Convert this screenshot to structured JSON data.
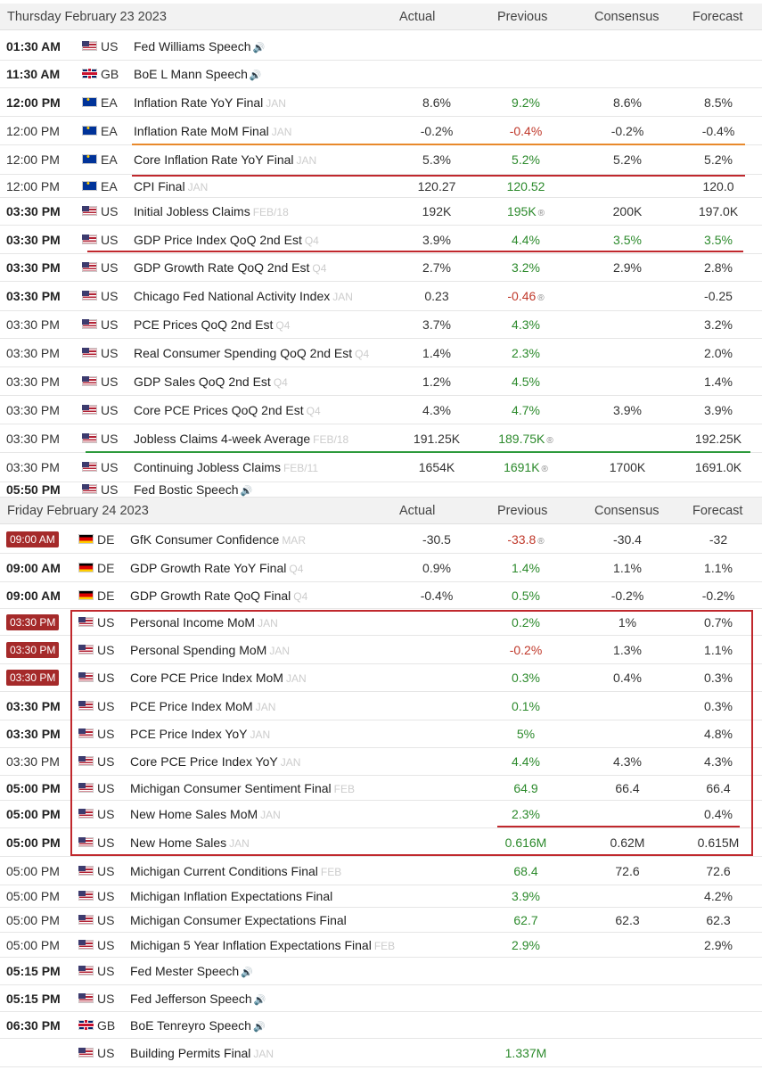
{
  "columns": {
    "actual": "Actual",
    "previous": "Previous",
    "consensus": "Consensus",
    "forecast": "Forecast"
  },
  "sections": [
    {
      "date": "Thursday February 23 2023"
    },
    {
      "date": "Friday February 24 2023"
    }
  ],
  "rows": [
    {
      "time": "01:30 AM",
      "style": "bold",
      "country": "US",
      "event": "Fed Williams Speech",
      "speech": true
    },
    {
      "time": "11:30 AM",
      "style": "bold",
      "country": "GB",
      "event": "BoE L Mann Speech",
      "speech": true
    },
    {
      "time": "12:00 PM",
      "style": "bold",
      "country": "EA",
      "event": "Inflation Rate YoY Final",
      "ref": "JAN",
      "actual": "8.6%",
      "previous": "9.2%",
      "previous_color": "green",
      "consensus": "8.6%",
      "forecast": "8.5%"
    },
    {
      "time": "12:00 PM",
      "style": "normal",
      "country": "EA",
      "event": "Inflation Rate MoM Final",
      "ref": "JAN",
      "actual": "-0.2%",
      "previous": "-0.4%",
      "previous_color": "red",
      "consensus": "-0.2%",
      "forecast": "-0.4%"
    },
    {
      "time": "12:00 PM",
      "style": "normal",
      "country": "EA",
      "event": "Core Inflation Rate YoY Final",
      "ref": "JAN",
      "actual": "5.3%",
      "previous": "5.2%",
      "previous_color": "green",
      "consensus": "5.2%",
      "forecast": "5.2%"
    },
    {
      "time": "12:00 PM",
      "style": "normal",
      "country": "EA",
      "event": "CPI Final",
      "ref": "JAN",
      "actual": "120.27",
      "previous": "120.52",
      "previous_color": "green",
      "consensus": "",
      "forecast": "120.0"
    },
    {
      "time": "03:30 PM",
      "style": "bold",
      "country": "US",
      "event": "Initial Jobless Claims",
      "ref": "FEB/18",
      "actual": "192K",
      "previous": "195K",
      "previous_color": "green",
      "revised": "®",
      "consensus": "200K",
      "forecast": "197.0K"
    },
    {
      "time": "03:30 PM",
      "style": "bold",
      "country": "US",
      "event": "GDP Price Index QoQ 2nd Est",
      "ref": "Q4",
      "actual": "3.9%",
      "previous": "4.4%",
      "previous_color": "green",
      "consensus": "3.5%",
      "consensus_color": "green",
      "forecast": "3.5%",
      "forecast_color": "green"
    },
    {
      "time": "03:30 PM",
      "style": "bold",
      "country": "US",
      "event": "GDP Growth Rate QoQ 2nd Est",
      "ref": "Q4",
      "actual": "2.7%",
      "previous": "3.2%",
      "previous_color": "green",
      "consensus": "2.9%",
      "forecast": "2.8%"
    },
    {
      "time": "03:30 PM",
      "style": "bold",
      "country": "US",
      "event": "Chicago Fed National Activity Index",
      "ref": "JAN",
      "actual": "0.23",
      "previous": "-0.46",
      "previous_color": "red",
      "revised": "®",
      "consensus": "",
      "forecast": "-0.25"
    },
    {
      "time": "03:30 PM",
      "style": "normal",
      "country": "US",
      "event": "PCE Prices QoQ 2nd Est",
      "ref": "Q4",
      "actual": "3.7%",
      "previous": "4.3%",
      "previous_color": "green",
      "consensus": "",
      "forecast": "3.2%"
    },
    {
      "time": "03:30 PM",
      "style": "normal",
      "country": "US",
      "event": "Real Consumer Spending QoQ 2nd Est",
      "ref": "Q4",
      "actual": "1.4%",
      "previous": "2.3%",
      "previous_color": "green",
      "consensus": "",
      "forecast": "2.0%"
    },
    {
      "time": "03:30 PM",
      "style": "normal",
      "country": "US",
      "event": "GDP Sales QoQ 2nd Est",
      "ref": "Q4",
      "actual": "1.2%",
      "previous": "4.5%",
      "previous_color": "green",
      "consensus": "",
      "forecast": "1.4%"
    },
    {
      "time": "03:30 PM",
      "style": "normal",
      "country": "US",
      "event": "Core PCE Prices QoQ 2nd Est",
      "ref": "Q4",
      "actual": "4.3%",
      "previous": "4.7%",
      "previous_color": "green",
      "consensus": "3.9%",
      "forecast": "3.9%"
    },
    {
      "time": "03:30 PM",
      "style": "normal",
      "country": "US",
      "event": "Jobless Claims 4-week Average",
      "ref": "FEB/18",
      "actual": "191.25K",
      "previous": "189.75K",
      "previous_color": "green",
      "revised": "®",
      "consensus": "",
      "forecast": "192.25K"
    },
    {
      "time": "03:30 PM",
      "style": "normal",
      "country": "US",
      "event": "Continuing Jobless Claims",
      "ref": "FEB/11",
      "actual": "1654K",
      "previous": "1691K",
      "previous_color": "green",
      "revised": "®",
      "consensus": "1700K",
      "forecast": "1691.0K"
    },
    {
      "time": "05:50 PM",
      "style": "bold",
      "country": "US",
      "event": "Fed Bostic Speech",
      "speech": true
    },
    {
      "time": "09:00 AM",
      "style": "badge",
      "country": "DE",
      "event": "GfK Consumer Confidence",
      "ref": "MAR",
      "actual": "-30.5",
      "previous": "-33.8",
      "previous_color": "red",
      "revised": "®",
      "consensus": "-30.4",
      "forecast": "-32"
    },
    {
      "time": "09:00 AM",
      "style": "bold",
      "country": "DE",
      "event": "GDP Growth Rate YoY Final",
      "ref": "Q4",
      "actual": "0.9%",
      "previous": "1.4%",
      "previous_color": "green",
      "consensus": "1.1%",
      "forecast": "1.1%"
    },
    {
      "time": "09:00 AM",
      "style": "bold",
      "country": "DE",
      "event": "GDP Growth Rate QoQ Final",
      "ref": "Q4",
      "actual": "-0.4%",
      "previous": "0.5%",
      "previous_color": "green",
      "consensus": "-0.2%",
      "forecast": "-0.2%"
    },
    {
      "time": "03:30 PM",
      "style": "badge",
      "country": "US",
      "event": "Personal Income MoM",
      "ref": "JAN",
      "actual": "",
      "previous": "0.2%",
      "previous_color": "green",
      "consensus": "1%",
      "forecast": "0.7%"
    },
    {
      "time": "03:30 PM",
      "style": "badge",
      "country": "US",
      "event": "Personal Spending MoM",
      "ref": "JAN",
      "actual": "",
      "previous": "-0.2%",
      "previous_color": "red",
      "consensus": "1.3%",
      "forecast": "1.1%"
    },
    {
      "time": "03:30 PM",
      "style": "badge",
      "country": "US",
      "event": "Core PCE Price Index MoM",
      "ref": "JAN",
      "actual": "",
      "previous": "0.3%",
      "previous_color": "green",
      "consensus": "0.4%",
      "forecast": "0.3%"
    },
    {
      "time": "03:30 PM",
      "style": "bold",
      "country": "US",
      "event": "PCE Price Index MoM",
      "ref": "JAN",
      "actual": "",
      "previous": "0.1%",
      "previous_color": "green",
      "consensus": "",
      "forecast": "0.3%"
    },
    {
      "time": "03:30 PM",
      "style": "bold",
      "country": "US",
      "event": "PCE Price Index YoY",
      "ref": "JAN",
      "actual": "",
      "previous": "5%",
      "previous_color": "green",
      "consensus": "",
      "forecast": "4.8%"
    },
    {
      "time": "03:30 PM",
      "style": "normal",
      "country": "US",
      "event": "Core PCE Price Index YoY",
      "ref": "JAN",
      "actual": "",
      "previous": "4.4%",
      "previous_color": "green",
      "consensus": "4.3%",
      "forecast": "4.3%"
    },
    {
      "time": "05:00 PM",
      "style": "bold",
      "country": "US",
      "event": "Michigan Consumer Sentiment Final",
      "ref": "FEB",
      "actual": "",
      "previous": "64.9",
      "previous_color": "green",
      "consensus": "66.4",
      "forecast": "66.4"
    },
    {
      "time": "05:00 PM",
      "style": "bold",
      "country": "US",
      "event": "New Home Sales MoM",
      "ref": "JAN",
      "actual": "",
      "previous": "2.3%",
      "previous_color": "green",
      "consensus": "",
      "forecast": "0.4%"
    },
    {
      "time": "05:00 PM",
      "style": "bold",
      "country": "US",
      "event": "New Home Sales",
      "ref": "JAN",
      "actual": "",
      "previous": "0.616M",
      "previous_color": "green",
      "consensus": "0.62M",
      "forecast": "0.615M"
    },
    {
      "time": "05:00 PM",
      "style": "normal",
      "country": "US",
      "event": "Michigan Current Conditions Final",
      "ref": "FEB",
      "actual": "",
      "previous": "68.4",
      "previous_color": "green",
      "consensus": "72.6",
      "forecast": "72.6"
    },
    {
      "time": "05:00 PM",
      "style": "normal",
      "country": "US",
      "event": "Michigan Inflation Expectations Final",
      "ref": "",
      "actual": "",
      "previous": "3.9%",
      "previous_color": "green",
      "consensus": "",
      "forecast": "4.2%"
    },
    {
      "time": "05:00 PM",
      "style": "normal",
      "country": "US",
      "event": "Michigan Consumer Expectations Final",
      "ref": "",
      "actual": "",
      "previous": "62.7",
      "previous_color": "green",
      "consensus": "62.3",
      "forecast": "62.3"
    },
    {
      "time": "05:00 PM",
      "style": "normal",
      "country": "US",
      "event": "Michigan 5 Year Inflation Expectations Final",
      "ref": "FEB",
      "actual": "",
      "previous": "2.9%",
      "previous_color": "green",
      "consensus": "",
      "forecast": "2.9%"
    },
    {
      "time": "05:15 PM",
      "style": "bold",
      "country": "US",
      "event": "Fed Mester Speech",
      "speech": true
    },
    {
      "time": "05:15 PM",
      "style": "bold",
      "country": "US",
      "event": "Fed Jefferson Speech",
      "speech": true
    },
    {
      "time": "06:30 PM",
      "style": "bold",
      "country": "GB",
      "event": "BoE Tenreyro Speech",
      "speech": true
    },
    {
      "time": "",
      "style": "normal",
      "country": "US",
      "event": "Building Permits Final",
      "ref": "JAN",
      "actual": "",
      "previous": "1.337M",
      "previous_color": "green",
      "consensus": "",
      "forecast": ""
    }
  ],
  "annotations": {
    "line_colors": [
      "#e8892b",
      "#c0282d",
      "#c0282d",
      "#2c9a3c"
    ],
    "box_color": "#c0282d"
  }
}
